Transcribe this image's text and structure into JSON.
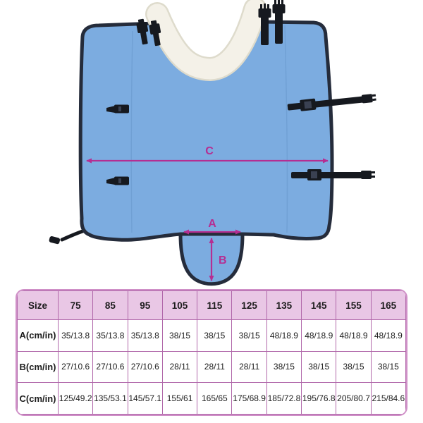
{
  "diagram": {
    "labels": {
      "a": "A",
      "b": "B",
      "c": "C"
    },
    "colors": {
      "fabric": "#7CACE0",
      "binding": "#252C3B",
      "collar": "#F4F1E8",
      "arrow": "#B52E92",
      "strap": "#16191F"
    }
  },
  "size_table": {
    "header": [
      "Size",
      "75",
      "85",
      "95",
      "105",
      "115",
      "125",
      "135",
      "145",
      "155",
      "165"
    ],
    "rows": [
      {
        "label": "A(cm/in)",
        "values": [
          "35/13.8",
          "35/13.8",
          "35/13.8",
          "38/15",
          "38/15",
          "38/15",
          "48/18.9",
          "48/18.9",
          "48/18.9",
          "48/18.9"
        ]
      },
      {
        "label": "B(cm/in)",
        "values": [
          "27/10.6",
          "27/10.6",
          "27/10.6",
          "28/11",
          "28/11",
          "28/11",
          "38/15",
          "38/15",
          "38/15",
          "38/15"
        ]
      },
      {
        "label": "C(cm/in)",
        "values": [
          "125/49.2",
          "135/53.1",
          "145/57.1",
          "155/61",
          "165/65",
          "175/68.9",
          "185/72.8",
          "195/76.8",
          "205/80.7",
          "215/84.6"
        ]
      }
    ],
    "colors": {
      "header_bg": "#E9C7E5",
      "border": "#B168AA",
      "outer_border": "#CF8FC7",
      "text": "#1C1C1C"
    }
  }
}
